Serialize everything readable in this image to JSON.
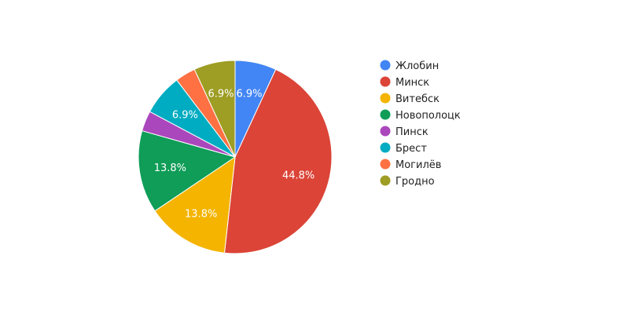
{
  "chart_data": {
    "type": "pie",
    "title": "",
    "legend_position": "right",
    "slices": [
      {
        "label": "Жлобин",
        "value": 6.9,
        "display": "6.9%",
        "color": "#4285f4"
      },
      {
        "label": "Минск",
        "value": 44.8,
        "display": "44.8%",
        "color": "#db4437"
      },
      {
        "label": "Витебск",
        "value": 13.8,
        "display": "13.8%",
        "color": "#f4b400"
      },
      {
        "label": "Новополоцк",
        "value": 13.8,
        "display": "13.8%",
        "color": "#0f9d58"
      },
      {
        "label": "Пинск",
        "value": 3.4,
        "display": "",
        "color": "#ab47bc"
      },
      {
        "label": "Брест",
        "value": 6.9,
        "display": "6.9%",
        "color": "#00acc1"
      },
      {
        "label": "Могилёв",
        "value": 3.4,
        "display": "",
        "color": "#ff7043"
      },
      {
        "label": "Гродно",
        "value": 6.9,
        "display": "6.9%",
        "color": "#9e9d24"
      }
    ]
  }
}
